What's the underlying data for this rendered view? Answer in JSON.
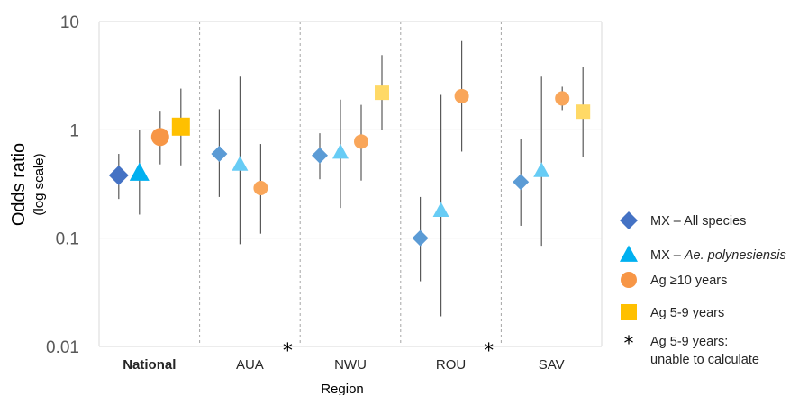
{
  "chart_data": {
    "type": "scatter",
    "ylabel": "Odds ratio",
    "ylabel_sub": "(log scale)",
    "xlabel": "Region",
    "yscale": "log",
    "ylim": [
      0.01,
      10
    ],
    "yticks": [
      {
        "value": 10,
        "label": "10"
      },
      {
        "value": 1,
        "label": "1"
      },
      {
        "value": 0.1,
        "label": "0.1"
      },
      {
        "value": 0.01,
        "label": "0.01"
      }
    ],
    "categories": [
      "National",
      "AUA",
      "NWU",
      "ROU",
      "SAV"
    ],
    "annotation_symbol": "*",
    "series": [
      {
        "name": "MX – All species",
        "name_parts": [
          {
            "text": "MX – All species",
            "italic": false
          }
        ],
        "marker": "diamond",
        "colors": [
          "#4472c4",
          "#5b9bd5",
          "#5b9bd5",
          "#5b9bd5",
          "#5b9bd5"
        ],
        "values": [
          0.38,
          0.6,
          0.58,
          0.1,
          0.33
        ],
        "lower": [
          0.23,
          0.24,
          0.35,
          0.04,
          0.13
        ],
        "upper": [
          0.6,
          1.55,
          0.93,
          0.24,
          0.82
        ]
      },
      {
        "name": "MX – Ae. polynesiensis",
        "name_parts": [
          {
            "text": "MX – ",
            "italic": false
          },
          {
            "text": "Ae. polynesiensis",
            "italic": true
          }
        ],
        "marker": "triangle",
        "colors": [
          "#00b0f0",
          "#67ccf5",
          "#67ccf5",
          "#67ccf5",
          "#67ccf5"
        ],
        "values": [
          0.4,
          0.48,
          0.62,
          0.18,
          0.42
        ],
        "lower": [
          0.165,
          0.088,
          0.19,
          0.019,
          0.085
        ],
        "upper": [
          1.0,
          3.1,
          1.9,
          2.1,
          3.1
        ]
      },
      {
        "name": "Ag ≥10 years",
        "name_parts": [
          {
            "text": "Ag ≥10 years",
            "italic": false
          }
        ],
        "marker": "circle",
        "colors": [
          "#f79646",
          "#f9a65a",
          "#f9a65a",
          "#f9a65a",
          "#f9a65a"
        ],
        "values": [
          0.86,
          0.29,
          0.78,
          2.05,
          1.95
        ],
        "lower": [
          0.48,
          0.11,
          0.34,
          0.63,
          1.52
        ],
        "upper": [
          1.5,
          0.74,
          1.7,
          6.6,
          2.5
        ]
      },
      {
        "name": "Ag 5-9 years",
        "name_parts": [
          {
            "text": "Ag 5-9 years",
            "italic": false
          }
        ],
        "marker": "square",
        "colors": [
          "#ffc000",
          "#ffd966",
          "#ffd966",
          "#ffd966",
          "#ffd966"
        ],
        "values": [
          1.07,
          null,
          2.2,
          null,
          1.47
        ],
        "lower": [
          0.47,
          null,
          1.0,
          null,
          0.56
        ],
        "upper": [
          2.4,
          null,
          4.9,
          null,
          3.8
        ]
      }
    ],
    "legend": {
      "placement": "right",
      "items": [
        {
          "marker": "diamond",
          "color": "#4472c4",
          "lines": [
            "MX – All species"
          ]
        },
        {
          "marker": "triangle",
          "color": "#00b0f0",
          "lines": [
            "MX – |Ae. polynesiensis"
          ]
        },
        {
          "marker": "circle",
          "color": "#f79646",
          "lines": [
            "Ag ≥10 years"
          ]
        },
        {
          "marker": "square",
          "color": "#ffc000",
          "lines": [
            "Ag 5-9 years"
          ]
        },
        {
          "marker": "asterisk",
          "color": "#000000",
          "lines": [
            "Ag 5-9 years:",
            "unable to calculate"
          ]
        }
      ]
    },
    "grid": true
  }
}
